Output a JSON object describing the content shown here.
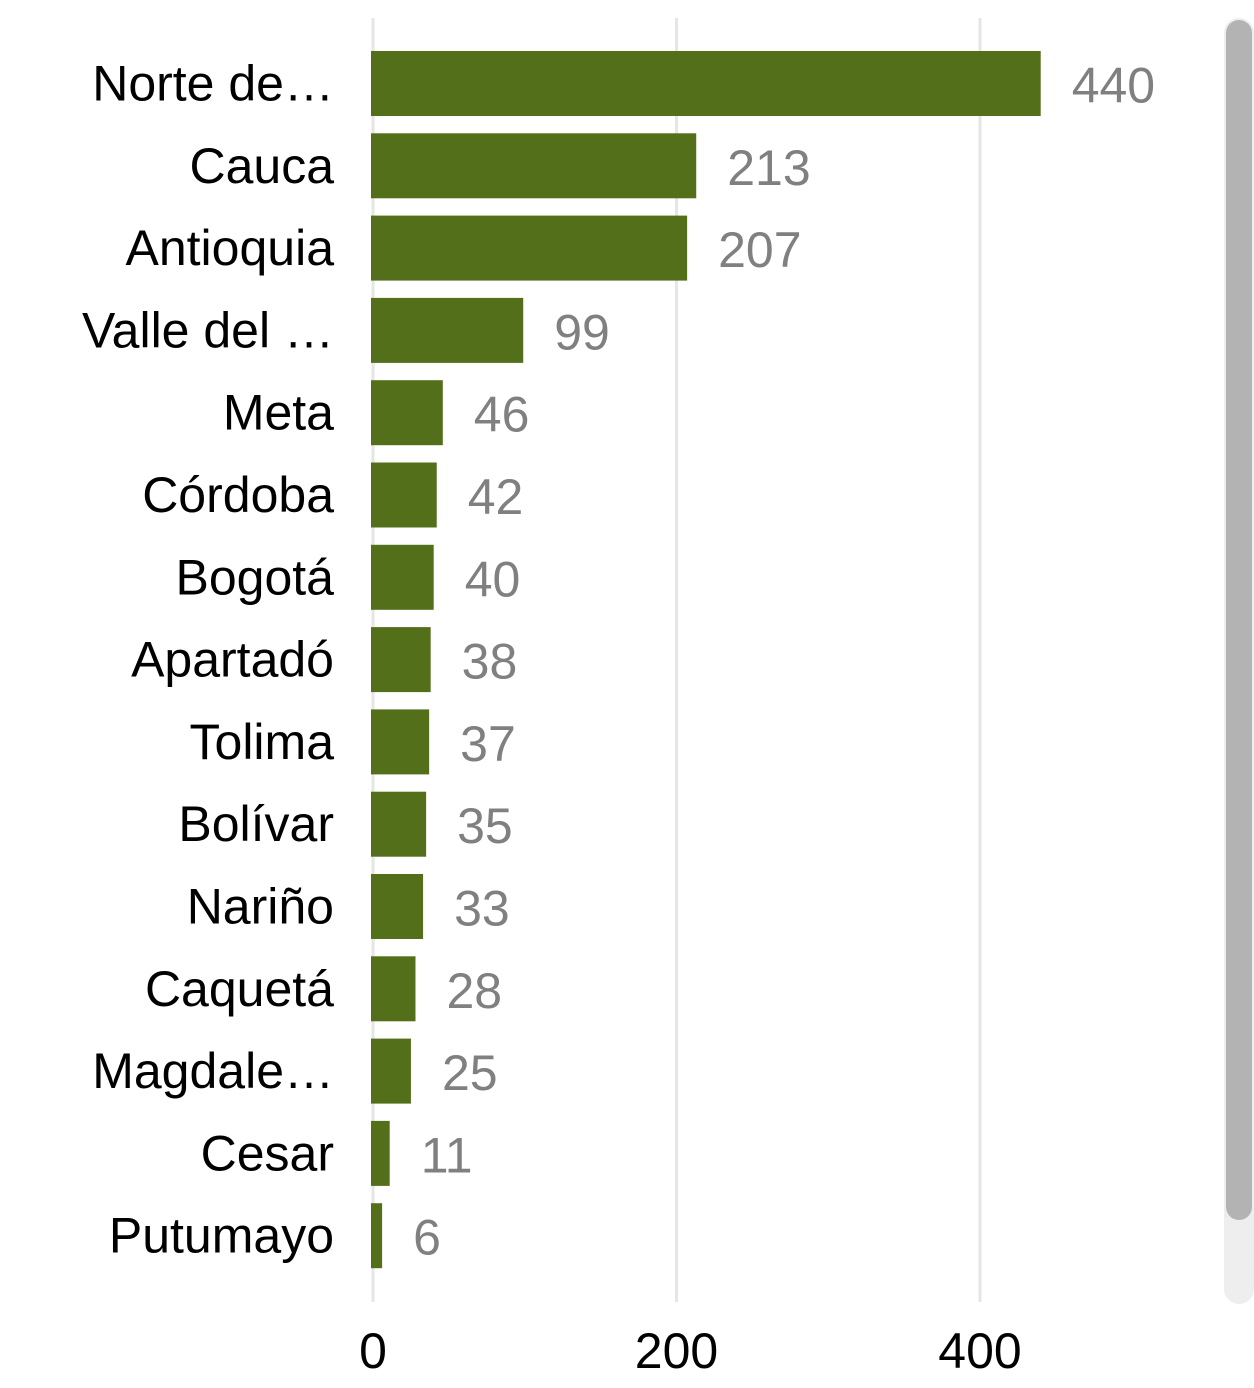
{
  "chart_data": {
    "type": "bar",
    "orientation": "horizontal",
    "categories": [
      "Norte de…",
      "Cauca",
      "Antioquia",
      "Valle del …",
      "Meta",
      "Córdoba",
      "Bogotá",
      "Apartadó",
      "Tolima",
      "Bolívar",
      "Nariño",
      "Caquetá",
      "Magdale…",
      "Cesar",
      "Putumayo"
    ],
    "values": [
      440,
      213,
      207,
      99,
      46,
      42,
      40,
      38,
      37,
      35,
      33,
      28,
      25,
      11,
      6
    ],
    "xticks": [
      "0",
      "200",
      "400"
    ],
    "xtick_values": [
      0,
      200,
      400
    ],
    "xlim": [
      0,
      520
    ],
    "grid": "vertical",
    "data_labels": true,
    "colors": {
      "bar": "#546f1a",
      "value_label": "#808080",
      "category_label": "#000000",
      "tick_label": "#000000",
      "grid": "#e6e6e6"
    }
  }
}
